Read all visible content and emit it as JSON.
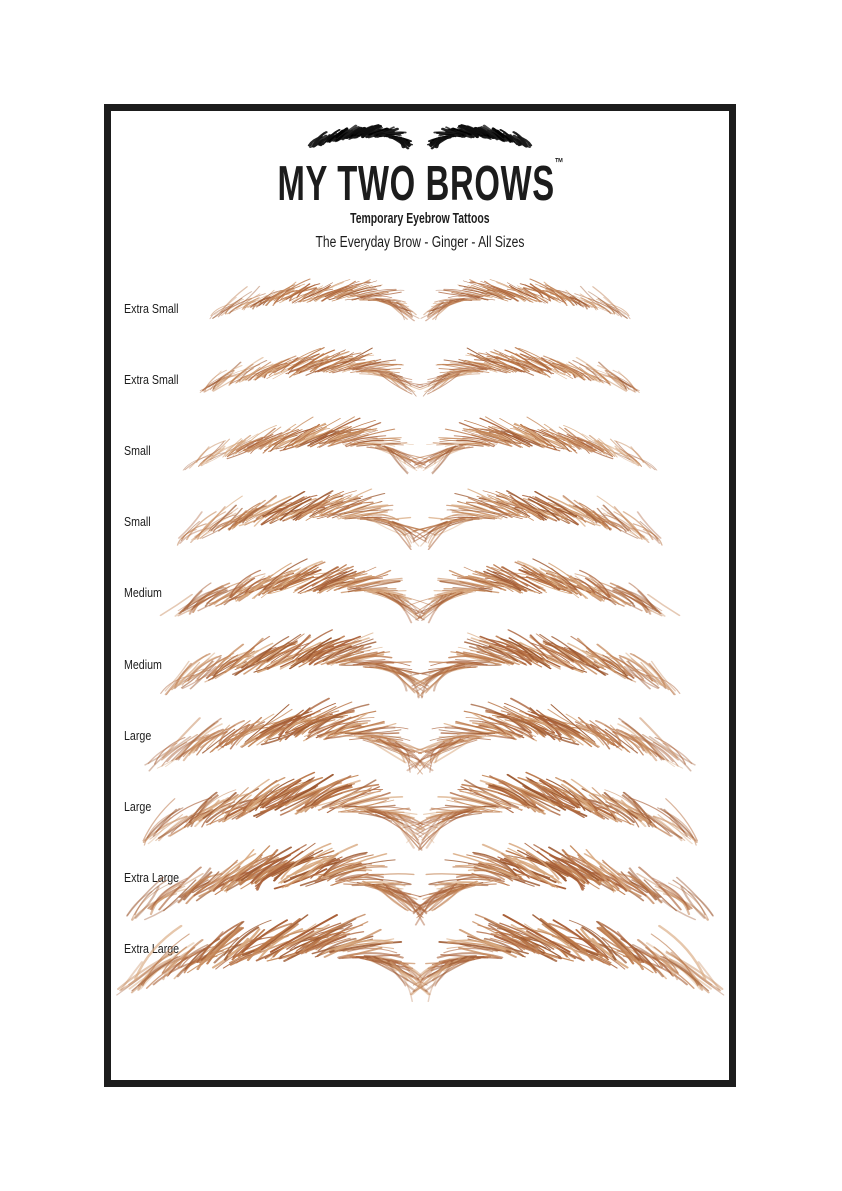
{
  "brand": {
    "name": "MY TWO BROWS",
    "trademark": "™",
    "tagline": "Temporary Eyebrow Tattoos",
    "product_line": "The Everyday Brow - Ginger - All Sizes"
  },
  "sheet": {
    "rows": [
      {
        "label": "Extra Small"
      },
      {
        "label": "Extra Small"
      },
      {
        "label": "Small"
      },
      {
        "label": "Small"
      },
      {
        "label": "Medium"
      },
      {
        "label": "Medium"
      },
      {
        "label": "Large"
      },
      {
        "label": "Large"
      },
      {
        "label": "Extra Large"
      },
      {
        "label": "Extra Large"
      }
    ]
  },
  "colors": {
    "background": "#ffffff",
    "frame": "#1d1d1d",
    "text": "#1c1c1c",
    "logo_brow_palette": [
      "#000000",
      "#101010",
      "#1b1b1b"
    ],
    "hair_palette": [
      "#9c5830",
      "#a96038",
      "#b97445",
      "#c68a5c",
      "#d8a97f"
    ]
  }
}
